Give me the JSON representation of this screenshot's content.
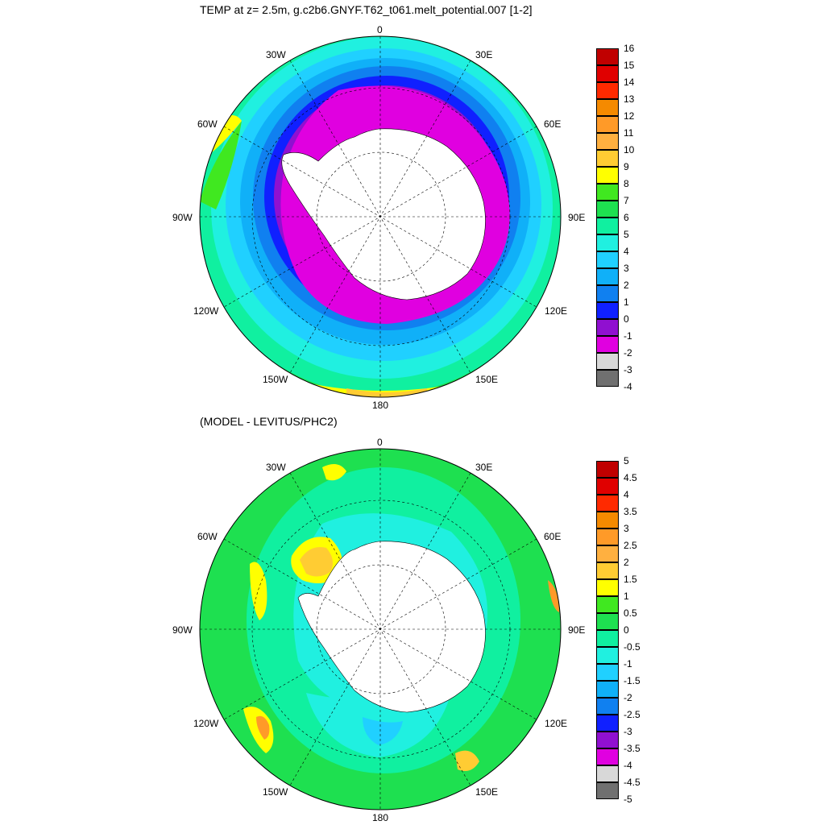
{
  "panel1": {
    "title": "TEMP at z=   2.5m, g.c2b6.GNYF.T62_t061.melt_potential.007 [1-2]",
    "colorbar": {
      "labels": [
        "16",
        "15",
        "14",
        "13",
        "12",
        "11",
        "10",
        "9",
        "8",
        "7",
        "6",
        "5",
        "4",
        "3",
        "2",
        "1",
        "0",
        "-1",
        "-2",
        "-3",
        "-4"
      ],
      "colors": [
        "#c00000",
        "#e00000",
        "#ff2a00",
        "#f58a00",
        "#ff9a28",
        "#ffb040",
        "#ffcc33",
        "#ffff00",
        "#40e820",
        "#1ee050",
        "#10f0a0",
        "#20f0e0",
        "#20d0ff",
        "#10b0f8",
        "#1080f0",
        "#1020ff",
        "#9010d0",
        "#e000e0",
        "#d8d8d8",
        "#707070"
      ]
    }
  },
  "panel2": {
    "title": "(MODEL - LEVITUS/PHC2)",
    "colorbar": {
      "labels": [
        "5",
        "4.5",
        "4",
        "3.5",
        "3",
        "2.5",
        "2",
        "1.5",
        "1",
        "0.5",
        "0",
        "-0.5",
        "-1",
        "-1.5",
        "-2",
        "-2.5",
        "-3",
        "-3.5",
        "-4",
        "-4.5",
        "-5"
      ],
      "colors": [
        "#c00000",
        "#e00000",
        "#ff2a00",
        "#f58a00",
        "#ff9a28",
        "#ffb040",
        "#ffcc33",
        "#ffff00",
        "#40e820",
        "#1ee050",
        "#10f0a0",
        "#20f0e0",
        "#20d0ff",
        "#10b0f8",
        "#1080f0",
        "#1020ff",
        "#9010d0",
        "#e000e0",
        "#d8d8d8",
        "#707070"
      ]
    }
  },
  "lon_labels": {
    "top": "0",
    "bottom": "180",
    "left": "90W",
    "right": "90E",
    "nw30": "30W",
    "ne30": "30E",
    "nw60": "60W",
    "ne60": "60E",
    "sw120": "120W",
    "se120": "120E",
    "sw150": "150W",
    "se150": "150E"
  }
}
